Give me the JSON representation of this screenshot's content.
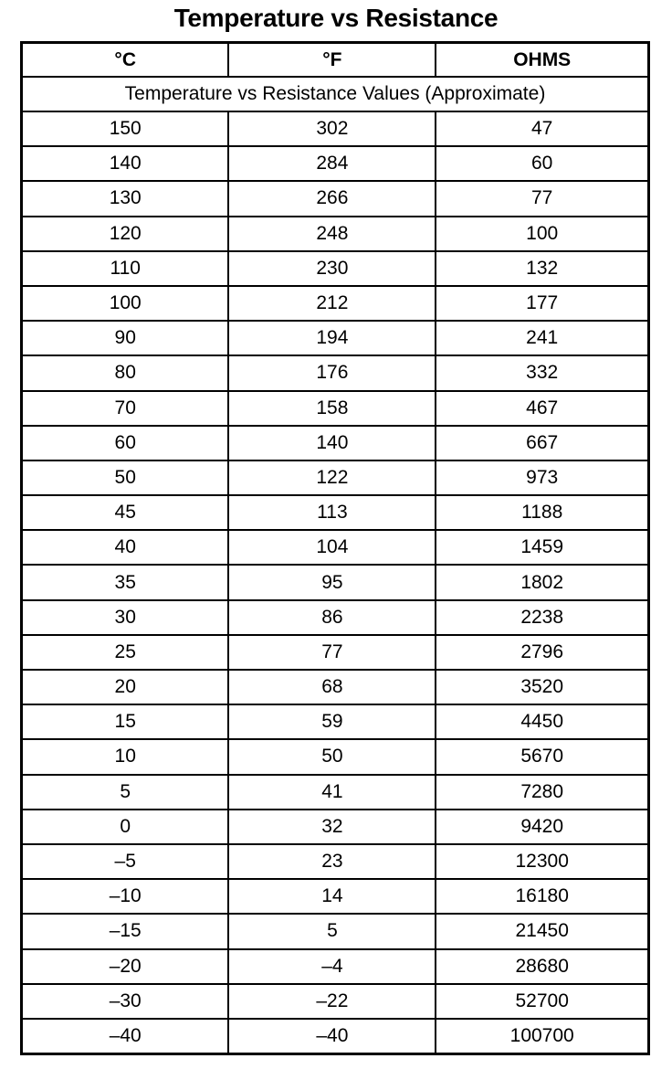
{
  "title": "Temperature vs Resistance",
  "headers": [
    "°C",
    "°F",
    "OHMS"
  ],
  "subtitle": "Temperature vs Resistance Values (Approximate)",
  "rows": [
    [
      "150",
      "302",
      "47"
    ],
    [
      "140",
      "284",
      "60"
    ],
    [
      "130",
      "266",
      "77"
    ],
    [
      "120",
      "248",
      "100"
    ],
    [
      "110",
      "230",
      "132"
    ],
    [
      "100",
      "212",
      "177"
    ],
    [
      "90",
      "194",
      "241"
    ],
    [
      "80",
      "176",
      "332"
    ],
    [
      "70",
      "158",
      "467"
    ],
    [
      "60",
      "140",
      "667"
    ],
    [
      "50",
      "122",
      "973"
    ],
    [
      "45",
      "113",
      "1188"
    ],
    [
      "40",
      "104",
      "1459"
    ],
    [
      "35",
      "95",
      "1802"
    ],
    [
      "30",
      "86",
      "2238"
    ],
    [
      "25",
      "77",
      "2796"
    ],
    [
      "20",
      "68",
      "3520"
    ],
    [
      "15",
      "59",
      "4450"
    ],
    [
      "10",
      "50",
      "5670"
    ],
    [
      "5",
      "41",
      "7280"
    ],
    [
      "0",
      "32",
      "9420"
    ],
    [
      "–5",
      "23",
      "12300"
    ],
    [
      "–10",
      "14",
      "16180"
    ],
    [
      "–15",
      "5",
      "21450"
    ],
    [
      "–20",
      "–4",
      "28680"
    ],
    [
      "–30",
      "–22",
      "52700"
    ],
    [
      "–40",
      "–40",
      "100700"
    ]
  ]
}
